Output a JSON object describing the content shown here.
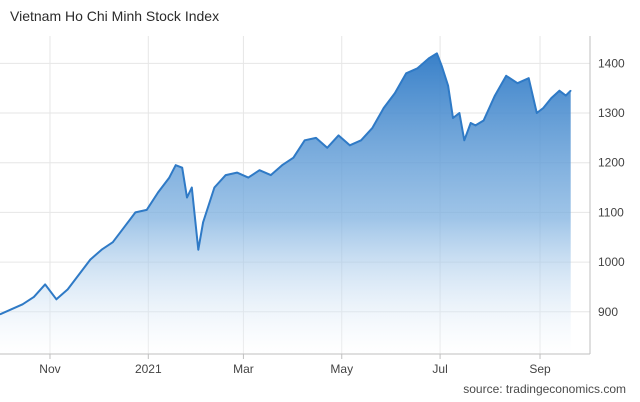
{
  "chart_data": {
    "type": "area",
    "title": "Vietnam Ho Chi Minh Stock Index",
    "source": "source: tradingeconomics.com",
    "xlabel": "",
    "ylabel": "",
    "x_ticks": [
      "Nov",
      "2021",
      "Mar",
      "May",
      "Jul",
      "Sep"
    ],
    "y_ticks": [
      900,
      1000,
      1100,
      1200,
      1300,
      1400
    ],
    "ylim": [
      815,
      1455
    ],
    "grid": true,
    "color": "#2f7ac6",
    "x": [
      "2020-10-01",
      "2020-10-08",
      "2020-10-15",
      "2020-10-22",
      "2020-10-29",
      "2020-11-05",
      "2020-11-12",
      "2020-11-19",
      "2020-11-26",
      "2020-12-03",
      "2020-12-10",
      "2020-12-17",
      "2020-12-24",
      "2020-12-31",
      "2021-01-07",
      "2021-01-14",
      "2021-01-18",
      "2021-01-22",
      "2021-01-25",
      "2021-01-28",
      "2021-02-01",
      "2021-02-04",
      "2021-02-11",
      "2021-02-18",
      "2021-02-25",
      "2021-03-04",
      "2021-03-11",
      "2021-03-18",
      "2021-03-25",
      "2021-04-01",
      "2021-04-08",
      "2021-04-15",
      "2021-04-22",
      "2021-04-29",
      "2021-05-06",
      "2021-05-13",
      "2021-05-20",
      "2021-05-27",
      "2021-06-03",
      "2021-06-10",
      "2021-06-17",
      "2021-06-24",
      "2021-06-29",
      "2021-07-02",
      "2021-07-06",
      "2021-07-09",
      "2021-07-13",
      "2021-07-16",
      "2021-07-20",
      "2021-07-23",
      "2021-07-28",
      "2021-08-04",
      "2021-08-11",
      "2021-08-18",
      "2021-08-25",
      "2021-08-30",
      "2021-09-03",
      "2021-09-08",
      "2021-09-13",
      "2021-09-17",
      "2021-09-20"
    ],
    "values": [
      895,
      905,
      915,
      930,
      955,
      925,
      945,
      975,
      1005,
      1025,
      1040,
      1070,
      1100,
      1105,
      1140,
      1170,
      1195,
      1190,
      1130,
      1150,
      1025,
      1080,
      1150,
      1175,
      1180,
      1170,
      1185,
      1175,
      1195,
      1210,
      1245,
      1250,
      1230,
      1255,
      1235,
      1245,
      1270,
      1310,
      1340,
      1380,
      1390,
      1410,
      1420,
      1395,
      1355,
      1290,
      1300,
      1245,
      1280,
      1275,
      1285,
      1335,
      1375,
      1360,
      1370,
      1300,
      1310,
      1330,
      1345,
      1335,
      1345
    ]
  }
}
